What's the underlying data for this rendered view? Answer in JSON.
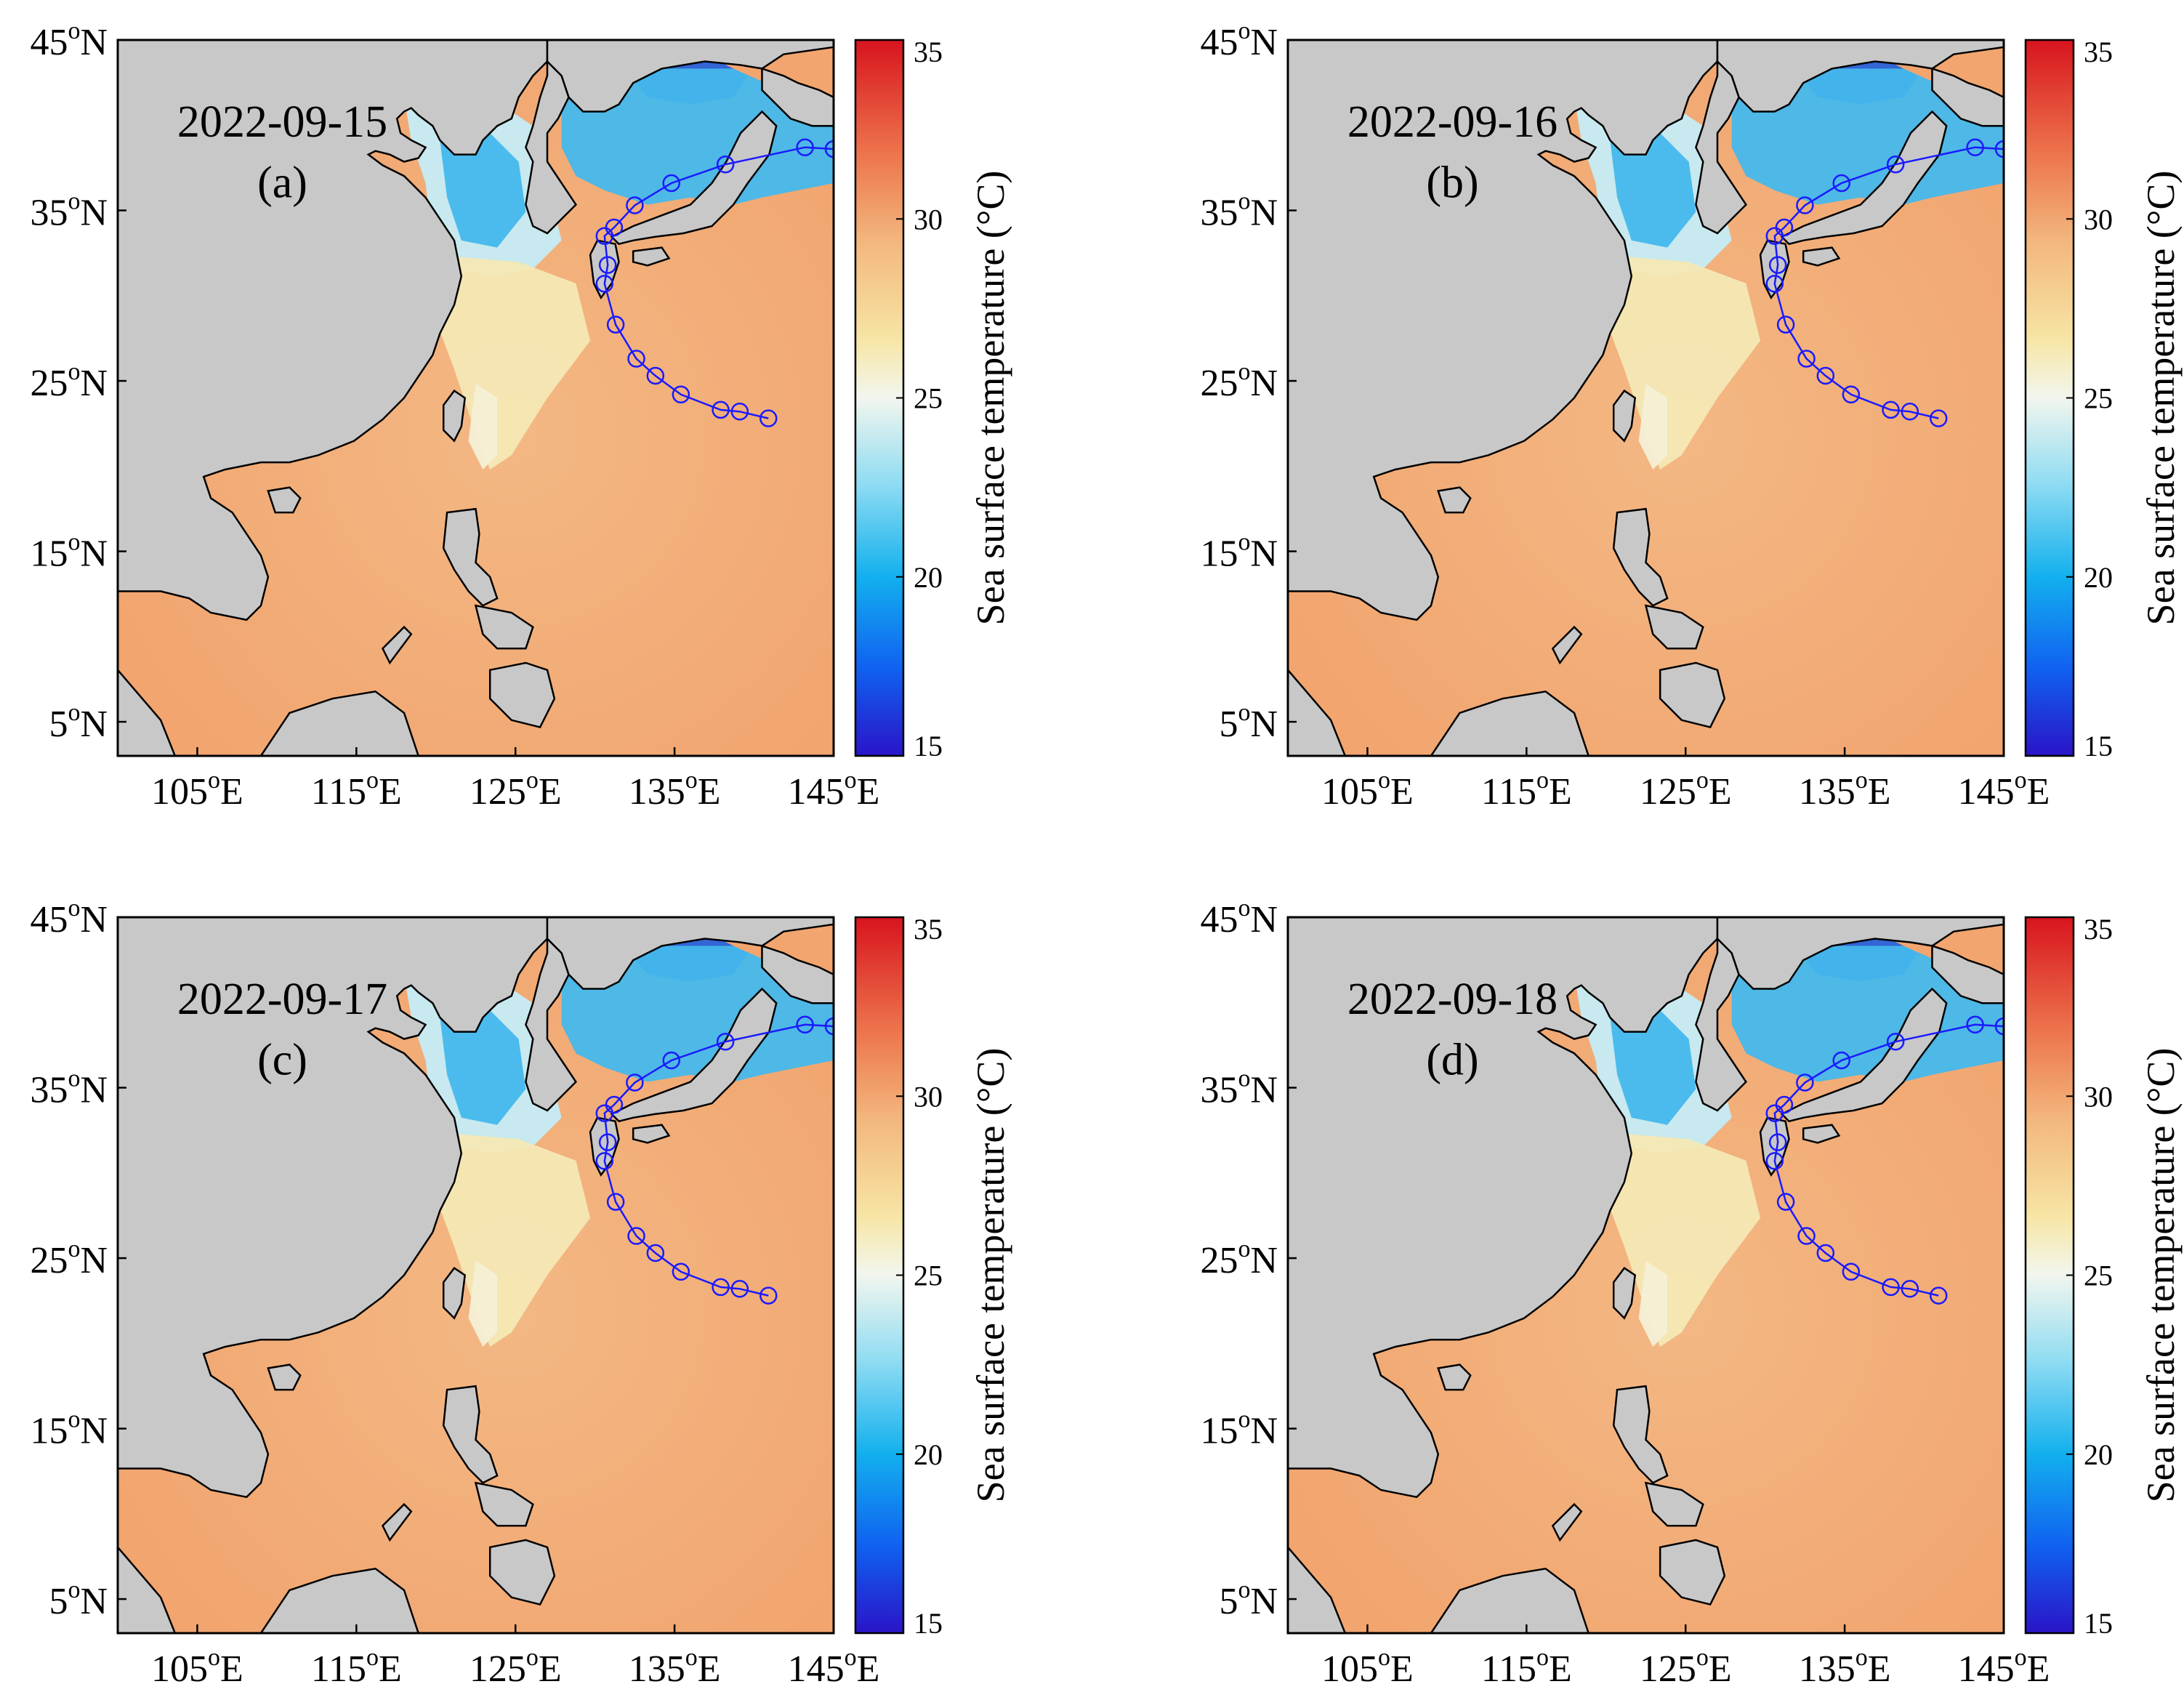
{
  "figure": {
    "panels": [
      {
        "id": "a",
        "date": "2022-09-15",
        "label": "(a)"
      },
      {
        "id": "b",
        "date": "2022-09-16",
        "label": "(b)"
      },
      {
        "id": "c",
        "date": "2022-09-17",
        "label": "(c)"
      },
      {
        "id": "d",
        "date": "2022-09-18",
        "label": "(d)"
      }
    ],
    "lon_ticks": [
      {
        "value": 105,
        "num": "105",
        "hemi": "E"
      },
      {
        "value": 115,
        "num": "115",
        "hemi": "E"
      },
      {
        "value": 125,
        "num": "125",
        "hemi": "E"
      },
      {
        "value": 135,
        "num": "135",
        "hemi": "E"
      },
      {
        "value": 145,
        "num": "145",
        "hemi": "E"
      }
    ],
    "lat_ticks": [
      {
        "value": 45,
        "num": "45",
        "hemi": "N"
      },
      {
        "value": 35,
        "num": "35",
        "hemi": "N"
      },
      {
        "value": 25,
        "num": "25",
        "hemi": "N"
      },
      {
        "value": 15,
        "num": "15",
        "hemi": "N"
      },
      {
        "value": 5,
        "num": "5",
        "hemi": "N"
      }
    ],
    "degree_symbol": "o",
    "lon_range": [
      100,
      145
    ],
    "lat_range": [
      3,
      45
    ],
    "colorbar": {
      "label": "Sea surface temperature (°C)",
      "min": 15,
      "max": 35,
      "ticks": [
        "35",
        "30",
        "25",
        "20",
        "15"
      ]
    },
    "track": {
      "name": "typhoon track",
      "points": [
        [
          140.9,
          22.8
        ],
        [
          139.1,
          23.2
        ],
        [
          137.9,
          23.3
        ],
        [
          135.4,
          24.2
        ],
        [
          133.8,
          25.3
        ],
        [
          132.6,
          26.3
        ],
        [
          131.3,
          28.3
        ],
        [
          130.6,
          30.7
        ],
        [
          130.8,
          31.8
        ],
        [
          130.6,
          33.5
        ],
        [
          131.2,
          34.0
        ],
        [
          132.5,
          35.3
        ],
        [
          134.8,
          36.6
        ],
        [
          138.2,
          37.7
        ],
        [
          143.2,
          38.7
        ],
        [
          145.0,
          38.6
        ]
      ]
    },
    "colors": {
      "land": "#c8c8c8",
      "coast": "#000000",
      "track": "#1a1aff",
      "cold_deep": "#1e5ee0",
      "cold": "#44b8ec",
      "cool": "#c4ecf6",
      "mild": "#f4e8b4",
      "warm": "#f3bf86",
      "hot": "#f2a26e"
    }
  }
}
